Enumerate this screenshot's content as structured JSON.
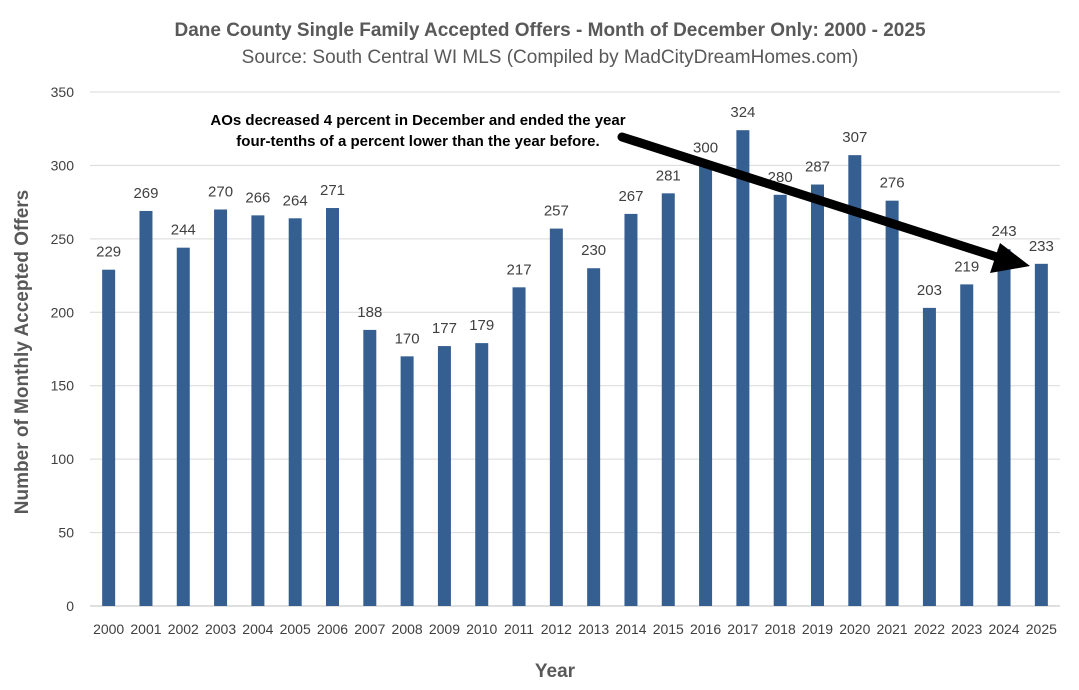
{
  "chart_data": {
    "type": "bar",
    "title": "Dane County Single Family Accepted Offers - Month of December Only: 2000 - 2025",
    "subtitle": "Source: South Central WI MLS (Compiled by MadCityDreamHomes.com)",
    "xlabel": "Year",
    "ylabel": "Number of Monthly Accepted Offers",
    "ylim": [
      0,
      350
    ],
    "yticks": [
      0,
      50,
      100,
      150,
      200,
      250,
      300,
      350
    ],
    "grid": true,
    "categories": [
      "2000",
      "2001",
      "2002",
      "2003",
      "2004",
      "2005",
      "2006",
      "2007",
      "2008",
      "2009",
      "2010",
      "2011",
      "2012",
      "2013",
      "2014",
      "2015",
      "2016",
      "2017",
      "2018",
      "2019",
      "2020",
      "2021",
      "2022",
      "2023",
      "2024",
      "2025"
    ],
    "values": [
      229,
      269,
      244,
      270,
      266,
      264,
      271,
      188,
      170,
      177,
      179,
      217,
      257,
      230,
      267,
      281,
      300,
      324,
      280,
      287,
      307,
      276,
      203,
      219,
      243,
      233
    ],
    "bar_color": "#365F91",
    "annotation": {
      "line1": "AOs decreased 4 percent in December and ended the year",
      "line2": "four-tenths of a percent lower than the year before.",
      "arrow_color": "#000000"
    }
  }
}
